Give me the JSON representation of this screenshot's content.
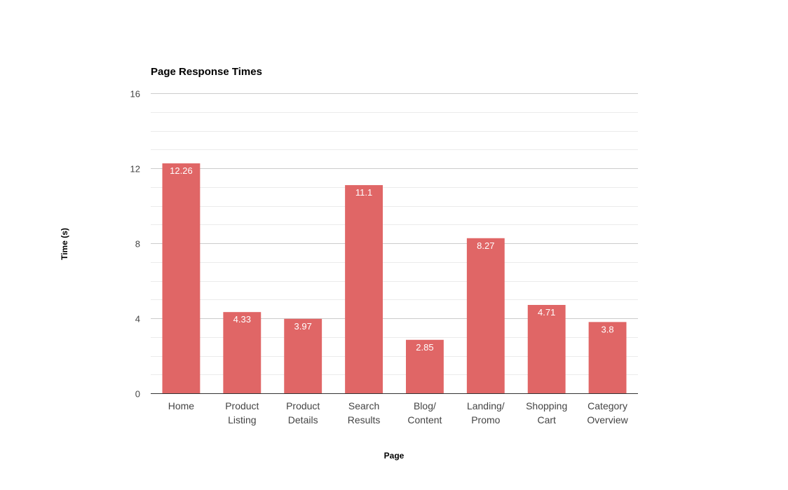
{
  "chart_data": {
    "type": "bar",
    "title": "Page Response Times",
    "xlabel": "Page",
    "ylabel": "Time (s)",
    "categories": [
      [
        "Home"
      ],
      [
        "Product",
        "Listing"
      ],
      [
        "Product",
        "Details"
      ],
      [
        "Search",
        "Results"
      ],
      [
        "Blog/",
        "Content"
      ],
      [
        "Landing/",
        "Promo"
      ],
      [
        "Shopping",
        "Cart"
      ],
      [
        "Category",
        "Overview"
      ]
    ],
    "values": [
      12.26,
      4.33,
      3.97,
      11.1,
      2.85,
      8.27,
      4.71,
      3.8
    ],
    "value_labels": [
      "12.26",
      "4.33",
      "3.97",
      "11.1",
      "2.85",
      "8.27",
      "4.71",
      "3.8"
    ],
    "ylim": [
      0,
      16
    ],
    "yticks": [
      0,
      4,
      8,
      12,
      16
    ],
    "grid": true,
    "legend": "none",
    "colors": {
      "bar": "#e06666",
      "major_grid": "#cccccc",
      "minor_grid": "#ebebeb",
      "baseline": "#333333",
      "tick_text": "#444444",
      "title_text": "#000000",
      "bar_label": "#ffffff"
    }
  }
}
